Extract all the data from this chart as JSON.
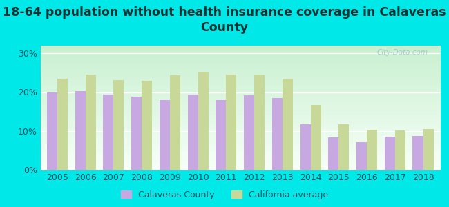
{
  "title": "18-64 population without health insurance coverage in Calaveras\nCounty",
  "years": [
    2005,
    2006,
    2007,
    2008,
    2009,
    2010,
    2011,
    2012,
    2013,
    2014,
    2015,
    2016,
    2017,
    2018
  ],
  "calaveras": [
    20.0,
    20.2,
    19.3,
    18.9,
    17.9,
    19.3,
    17.9,
    19.2,
    18.5,
    11.7,
    8.4,
    7.1,
    8.5,
    8.8
  ],
  "california": [
    23.5,
    24.6,
    23.2,
    23.0,
    24.4,
    25.3,
    24.6,
    24.5,
    23.5,
    16.8,
    11.8,
    10.4,
    10.2,
    10.5
  ],
  "bar_color_calaveras": "#c8a8e0",
  "bar_color_california": "#c8d898",
  "outer_background": "#00e8e8",
  "plot_bg_top": "#c8f0d0",
  "plot_bg_bottom": "#f8fff8",
  "ylim": [
    0,
    32
  ],
  "yticks": [
    0,
    10,
    20,
    30
  ],
  "ytick_labels": [
    "0%",
    "10%",
    "20%",
    "30%"
  ],
  "legend_label_calaveras": "Calaveras County",
  "legend_label_california": "California average",
  "title_fontsize": 12.5,
  "axis_fontsize": 9,
  "legend_fontsize": 9,
  "title_color": "#003333",
  "tick_color": "#005566"
}
